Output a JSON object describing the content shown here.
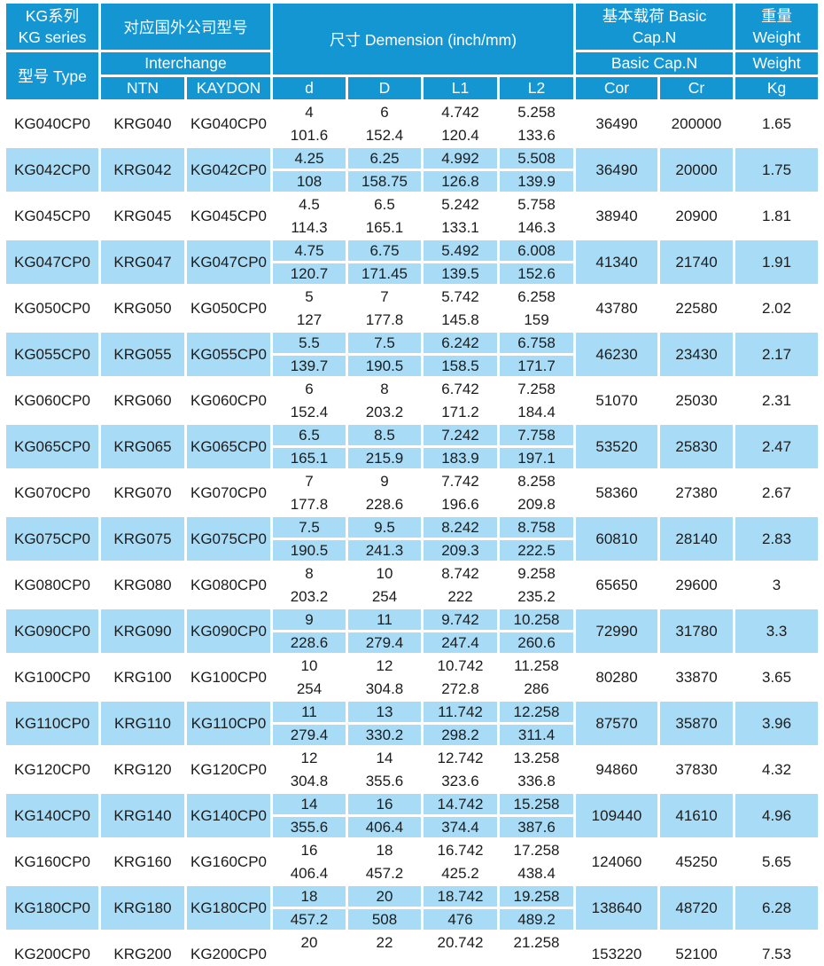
{
  "colors": {
    "header_blue": "#1496d3",
    "row_blue": "#a8dbf5",
    "gap_white": "#ffffff",
    "text_dark": "#1c1c1c",
    "header_text": "#ffffff"
  },
  "header": {
    "series": "KG系列\nKG series",
    "type": "型号 Type",
    "interchange_cn": "对应国外公司型号",
    "interchange_en": "Interchange",
    "ntn": "NTN",
    "kaydon": "KAYDON",
    "dimension": "尺寸 Demension (inch/mm)",
    "basic_cap": "基本载荷 Basic\nCap.N",
    "basic_cap_en": "Basic Cap.N",
    "weight_cn": "重量\nWeight",
    "weight_en": "Weight",
    "col_d": "d",
    "col_D": "D",
    "col_l1": "L1",
    "col_l2": "L2",
    "col_cor": "Cor",
    "col_cr": "Cr",
    "col_kg": "Kg"
  },
  "rows": [
    {
      "type": "KG040CP0",
      "ntn": "KRG040",
      "kaydon": "KG040CP0",
      "d_in": "4",
      "d_mm": "101.6",
      "D_in": "6",
      "D_mm": "152.4",
      "l1_in": "4.742",
      "l1_mm": "120.4",
      "l2_in": "5.258",
      "l2_mm": "133.6",
      "cor": "36490",
      "cr": "200000",
      "kg": "1.65"
    },
    {
      "type": "KG042CP0",
      "ntn": "KRG042",
      "kaydon": "KG042CP0",
      "d_in": "4.25",
      "d_mm": "108",
      "D_in": "6.25",
      "D_mm": "158.75",
      "l1_in": "4.992",
      "l1_mm": "126.8",
      "l2_in": "5.508",
      "l2_mm": "139.9",
      "cor": "36490",
      "cr": "20000",
      "kg": "1.75"
    },
    {
      "type": "KG045CP0",
      "ntn": "KRG045",
      "kaydon": "KG045CP0",
      "d_in": "4.5",
      "d_mm": "114.3",
      "D_in": "6.5",
      "D_mm": "165.1",
      "l1_in": "5.242",
      "l1_mm": "133.1",
      "l2_in": "5.758",
      "l2_mm": "146.3",
      "cor": "38940",
      "cr": "20900",
      "kg": "1.81"
    },
    {
      "type": "KG047CP0",
      "ntn": "KRG047",
      "kaydon": "KG047CP0",
      "d_in": "4.75",
      "d_mm": "120.7",
      "D_in": "6.75",
      "D_mm": "171.45",
      "l1_in": "5.492",
      "l1_mm": "139.5",
      "l2_in": "6.008",
      "l2_mm": "152.6",
      "cor": "41340",
      "cr": "21740",
      "kg": "1.91"
    },
    {
      "type": "KG050CP0",
      "ntn": "KRG050",
      "kaydon": "KG050CP0",
      "d_in": "5",
      "d_mm": "127",
      "D_in": "7",
      "D_mm": "177.8",
      "l1_in": "5.742",
      "l1_mm": "145.8",
      "l2_in": "6.258",
      "l2_mm": "159",
      "cor": "43780",
      "cr": "22580",
      "kg": "2.02"
    },
    {
      "type": "KG055CP0",
      "ntn": "KRG055",
      "kaydon": "KG055CP0",
      "d_in": "5.5",
      "d_mm": "139.7",
      "D_in": "7.5",
      "D_mm": "190.5",
      "l1_in": "6.242",
      "l1_mm": "158.5",
      "l2_in": "6.758",
      "l2_mm": "171.7",
      "cor": "46230",
      "cr": "23430",
      "kg": "2.17"
    },
    {
      "type": "KG060CP0",
      "ntn": "KRG060",
      "kaydon": "KG060CP0",
      "d_in": "6",
      "d_mm": "152.4",
      "D_in": "8",
      "D_mm": "203.2",
      "l1_in": "6.742",
      "l1_mm": "171.2",
      "l2_in": "7.258",
      "l2_mm": "184.4",
      "cor": "51070",
      "cr": "25030",
      "kg": "2.31"
    },
    {
      "type": "KG065CP0",
      "ntn": "KRG065",
      "kaydon": "KG065CP0",
      "d_in": "6.5",
      "d_mm": "165.1",
      "D_in": "8.5",
      "D_mm": "215.9",
      "l1_in": "7.242",
      "l1_mm": "183.9",
      "l2_in": "7.758",
      "l2_mm": "197.1",
      "cor": "53520",
      "cr": "25830",
      "kg": "2.47"
    },
    {
      "type": "KG070CP0",
      "ntn": "KRG070",
      "kaydon": "KG070CP0",
      "d_in": "7",
      "d_mm": "177.8",
      "D_in": "9",
      "D_mm": "228.6",
      "l1_in": "7.742",
      "l1_mm": "196.6",
      "l2_in": "8.258",
      "l2_mm": "209.8",
      "cor": "58360",
      "cr": "27380",
      "kg": "2.67"
    },
    {
      "type": "KG075CP0",
      "ntn": "KRG075",
      "kaydon": "KG075CP0",
      "d_in": "7.5",
      "d_mm": "190.5",
      "D_in": "9.5",
      "D_mm": "241.3",
      "l1_in": "8.242",
      "l1_mm": "209.3",
      "l2_in": "8.758",
      "l2_mm": "222.5",
      "cor": "60810",
      "cr": "28140",
      "kg": "2.83"
    },
    {
      "type": "KG080CP0",
      "ntn": "KRG080",
      "kaydon": "KG080CP0",
      "d_in": "8",
      "d_mm": "203.2",
      "D_in": "10",
      "D_mm": "254",
      "l1_in": "8.742",
      "l1_mm": "222",
      "l2_in": "9.258",
      "l2_mm": "235.2",
      "cor": "65650",
      "cr": "29600",
      "kg": "3"
    },
    {
      "type": "KG090CP0",
      "ntn": "KRG090",
      "kaydon": "KG090CP0",
      "d_in": "9",
      "d_mm": "228.6",
      "D_in": "11",
      "D_mm": "279.4",
      "l1_in": "9.742",
      "l1_mm": "247.4",
      "l2_in": "10.258",
      "l2_mm": "260.6",
      "cor": "72990",
      "cr": "31780",
      "kg": "3.3"
    },
    {
      "type": "KG100CP0",
      "ntn": "KRG100",
      "kaydon": "KG100CP0",
      "d_in": "10",
      "d_mm": "254",
      "D_in": "12",
      "D_mm": "304.8",
      "l1_in": "10.742",
      "l1_mm": "272.8",
      "l2_in": "11.258",
      "l2_mm": "286",
      "cor": "80280",
      "cr": "33870",
      "kg": "3.65"
    },
    {
      "type": "KG110CP0",
      "ntn": "KRG110",
      "kaydon": "KG110CP0",
      "d_in": "11",
      "d_mm": "279.4",
      "D_in": "13",
      "D_mm": "330.2",
      "l1_in": "11.742",
      "l1_mm": "298.2",
      "l2_in": "12.258",
      "l2_mm": "311.4",
      "cor": "87570",
      "cr": "35870",
      "kg": "3.96"
    },
    {
      "type": "KG120CP0",
      "ntn": "KRG120",
      "kaydon": "KG120CP0",
      "d_in": "12",
      "d_mm": "304.8",
      "D_in": "14",
      "D_mm": "355.6",
      "l1_in": "12.742",
      "l1_mm": "323.6",
      "l2_in": "13.258",
      "l2_mm": "336.8",
      "cor": "94860",
      "cr": "37830",
      "kg": "4.32"
    },
    {
      "type": "KG140CP0",
      "ntn": "KRG140",
      "kaydon": "KG140CP0",
      "d_in": "14",
      "d_mm": "355.6",
      "D_in": "16",
      "D_mm": "406.4",
      "l1_in": "14.742",
      "l1_mm": "374.4",
      "l2_in": "15.258",
      "l2_mm": "387.6",
      "cor": "109440",
      "cr": "41610",
      "kg": "4.96"
    },
    {
      "type": "KG160CP0",
      "ntn": "KRG160",
      "kaydon": "KG160CP0",
      "d_in": "16",
      "d_mm": "406.4",
      "D_in": "18",
      "D_mm": "457.2",
      "l1_in": "16.742",
      "l1_mm": "425.2",
      "l2_in": "17.258",
      "l2_mm": "438.4",
      "cor": "124060",
      "cr": "45250",
      "kg": "5.65"
    },
    {
      "type": "KG180CP0",
      "ntn": "KRG180",
      "kaydon": "KG180CP0",
      "d_in": "18",
      "d_mm": "457.2",
      "D_in": "20",
      "D_mm": "508",
      "l1_in": "18.742",
      "l1_mm": "476",
      "l2_in": "19.258",
      "l2_mm": "489.2",
      "cor": "138640",
      "cr": "48720",
      "kg": "6.28"
    },
    {
      "type": "KG200CP0",
      "ntn": "KRG200",
      "kaydon": "KG200CP0",
      "d_in": "20",
      "d_mm": "",
      "D_in": "22",
      "D_mm": "",
      "l1_in": "20.742",
      "l1_mm": "",
      "l2_in": "21.258",
      "l2_mm": "",
      "cor": "153220",
      "cr": "52100",
      "kg": "7.53"
    }
  ]
}
